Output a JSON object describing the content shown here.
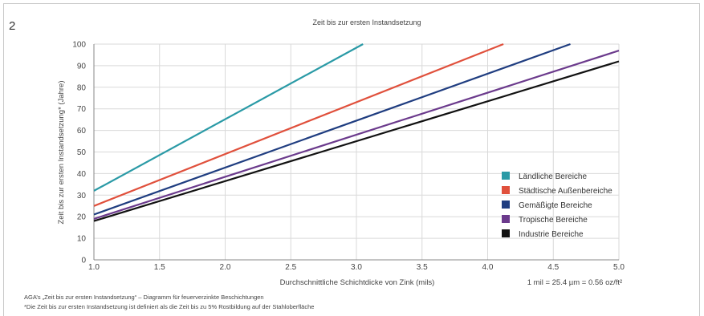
{
  "figure_number": "2",
  "chart_data": {
    "type": "line",
    "title": "Zeit bis zur ersten Instandsetzung",
    "xlabel": "Durchschnittliche Schichtdicke von Zink (mils)",
    "ylabel": "Zeit bis zur ersten Instandsetzung* (Jahre)",
    "xlim": [
      1.0,
      5.0
    ],
    "ylim": [
      0,
      100
    ],
    "xticks": [
      "1.0",
      "1.5",
      "2.0",
      "2.5",
      "3.0",
      "3.5",
      "4.0",
      "4.5",
      "5.0"
    ],
    "yticks": [
      "0",
      "10",
      "20",
      "30",
      "40",
      "50",
      "60",
      "70",
      "80",
      "90",
      "100"
    ],
    "grid": true,
    "legend_position": "bottom-right",
    "series": [
      {
        "name": "Ländliche Bereiche",
        "color": "#2a9aa6",
        "x": [
          1.0,
          3.05
        ],
        "y": [
          32,
          100
        ]
      },
      {
        "name": "Städtische Außenbereiche",
        "color": "#e0503c",
        "x": [
          1.0,
          4.12
        ],
        "y": [
          25,
          100
        ]
      },
      {
        "name": "Gemäßigte Bereiche",
        "color": "#1f3d80",
        "x": [
          1.0,
          4.63
        ],
        "y": [
          21,
          100
        ]
      },
      {
        "name": "Tropische Bereiche",
        "color": "#6b3a8c",
        "x": [
          1.0,
          5.0
        ],
        "y": [
          19,
          97
        ]
      },
      {
        "name": "Industrie Bereiche",
        "color": "#111111",
        "x": [
          1.0,
          5.0
        ],
        "y": [
          18,
          92
        ]
      }
    ],
    "unit_note": "1 mil = 25.4 µm = 0.56 oz/ft²"
  },
  "footnotes": [
    "AGA’s „Zeit bis zur ersten Instandsetzung“ – Diagramm für feuerverzinkte Beschichtungen",
    "*Die Zeit bis zur ersten Instandsetzung ist definiert als die Zeit bis zu 5% Rostbildung auf der Stahloberfläche"
  ]
}
